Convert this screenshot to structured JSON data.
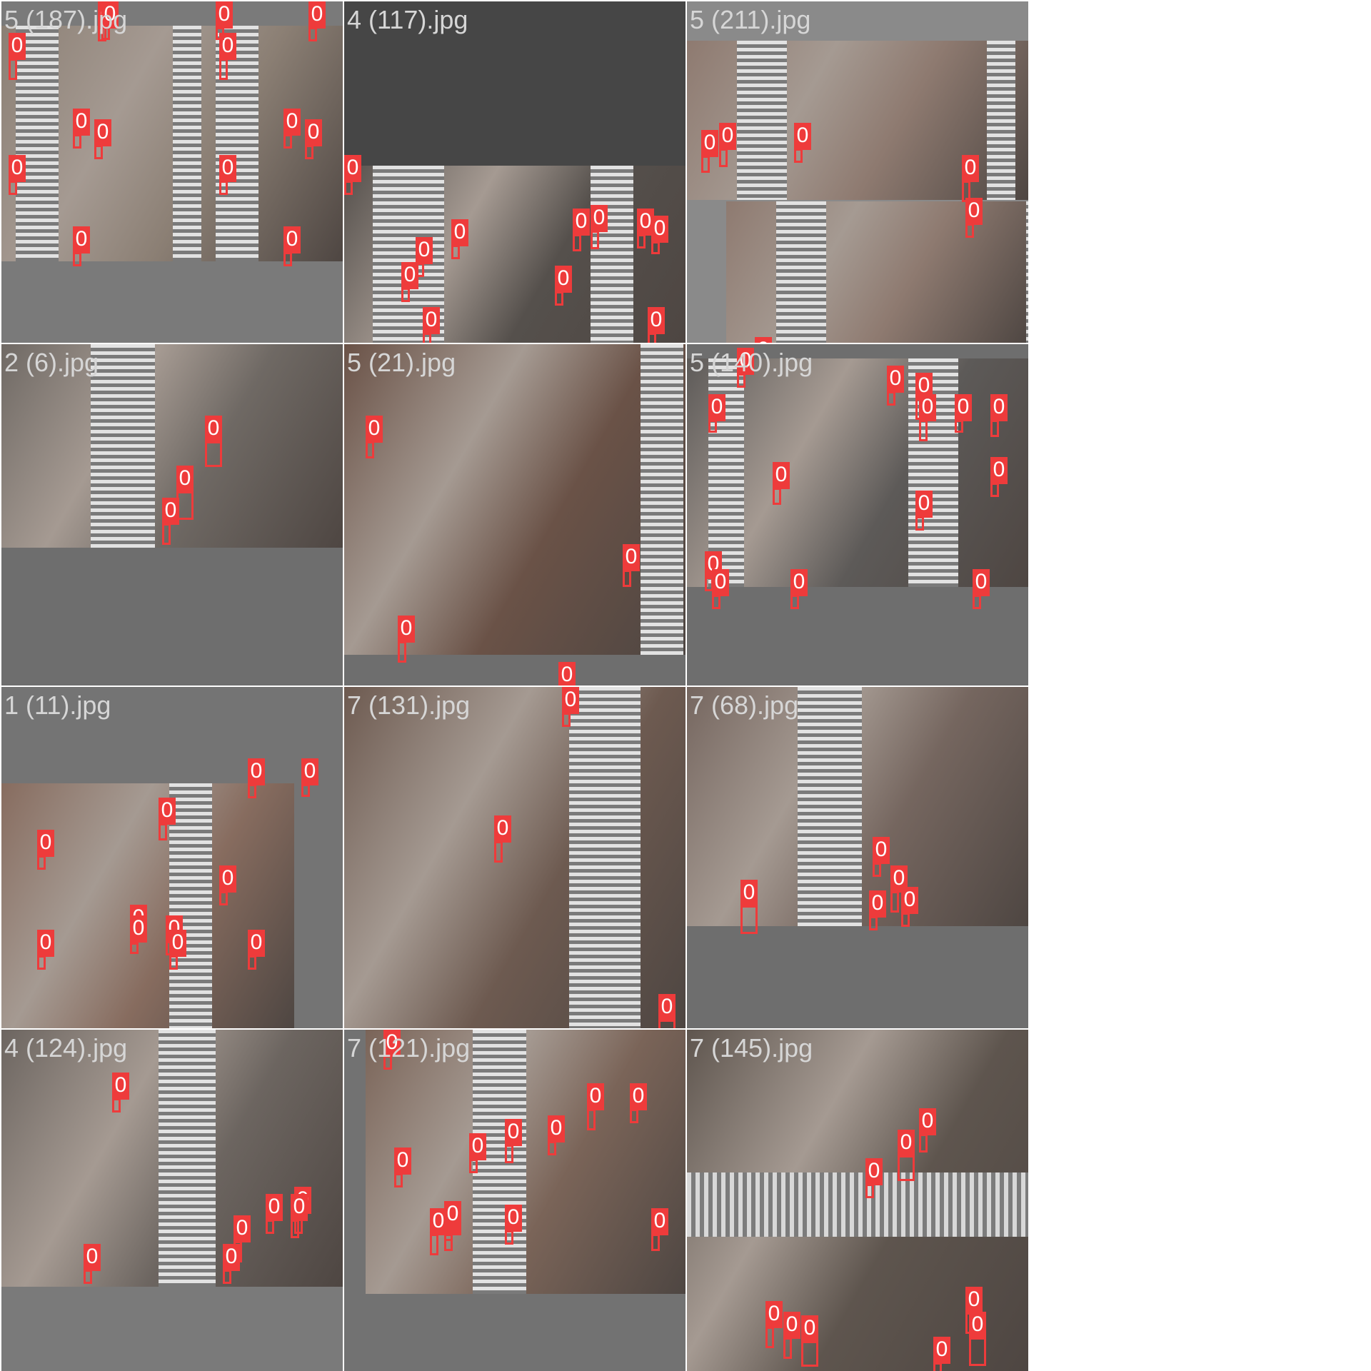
{
  "tiles": [
    {
      "title": "5 (187).jpg",
      "bg": "#7a7a7a",
      "dark": false,
      "style": "grid4",
      "labels": [
        "0",
        "0",
        "0",
        "0",
        "0",
        "0",
        "0",
        "0",
        "0",
        "0",
        "0",
        "0",
        "0",
        "0"
      ]
    },
    {
      "title": "4 (117).jpg",
      "bg": "#464646",
      "dark": true,
      "style": "bottomhalf",
      "labels": [
        "0",
        "0",
        "0",
        "0",
        "0",
        "0",
        "0",
        "0",
        "0",
        "0",
        "0"
      ]
    },
    {
      "title": "5 (211).jpg",
      "bg": "#8a8a8a",
      "dark": false,
      "style": "full",
      "labels": [
        "0",
        "0",
        "0",
        "0",
        "0",
        "0"
      ]
    },
    {
      "title": "2 (6).jpg",
      "bg": "#6e6e6e",
      "dark": false,
      "style": "tophalf",
      "labels": [
        "0",
        "0",
        "0"
      ]
    },
    {
      "title": "5 (21).jpg",
      "bg": "#6e6e6e",
      "dark": false,
      "style": "full",
      "labels": [
        "0",
        "0",
        "0",
        "0"
      ]
    },
    {
      "title": "5 (140).jpg",
      "bg": "#6e6e6e",
      "dark": false,
      "style": "upper",
      "labels": [
        "0",
        "0",
        "0",
        "0",
        "0",
        "0",
        "0",
        "0",
        "0",
        "0",
        "0",
        "0",
        "0",
        "0"
      ]
    },
    {
      "title": "1 (11).jpg",
      "bg": "#747474",
      "dark": false,
      "style": "lower",
      "labels": [
        "0",
        "0",
        "0",
        "0",
        "0",
        "0",
        "0",
        "0",
        "0",
        "0",
        "0"
      ]
    },
    {
      "title": "7 (131).jpg",
      "bg": "#6e6e6e",
      "dark": false,
      "style": "full",
      "labels": [
        "0",
        "0",
        "0"
      ]
    },
    {
      "title": "7 (68).jpg",
      "bg": "#6e6e6e",
      "dark": false,
      "style": "upper2",
      "labels": [
        "0",
        "0",
        "0",
        "0",
        "0"
      ]
    },
    {
      "title": "4 (124).jpg",
      "bg": "#7a7a7a",
      "dark": false,
      "style": "upper3",
      "labels": [
        "0",
        "0",
        "0",
        "0",
        "0",
        "0",
        "0"
      ]
    },
    {
      "title": "7 (121).jpg",
      "bg": "#727272",
      "dark": false,
      "style": "full",
      "labels": [
        "0",
        "0",
        "0",
        "0",
        "0",
        "0",
        "0",
        "0",
        "0",
        "0",
        "0",
        "0"
      ]
    },
    {
      "title": "7 (145).jpg",
      "bg": "#6e6e6e",
      "dark": false,
      "style": "full",
      "labels": [
        "0",
        "0",
        "0",
        "0",
        "0",
        "0",
        "0",
        "0",
        "0"
      ]
    }
  ],
  "colors": {
    "box": "#ee3b3b",
    "title": "#d6d6d6",
    "tile_bg": "#727272",
    "border": "#ffffff"
  }
}
